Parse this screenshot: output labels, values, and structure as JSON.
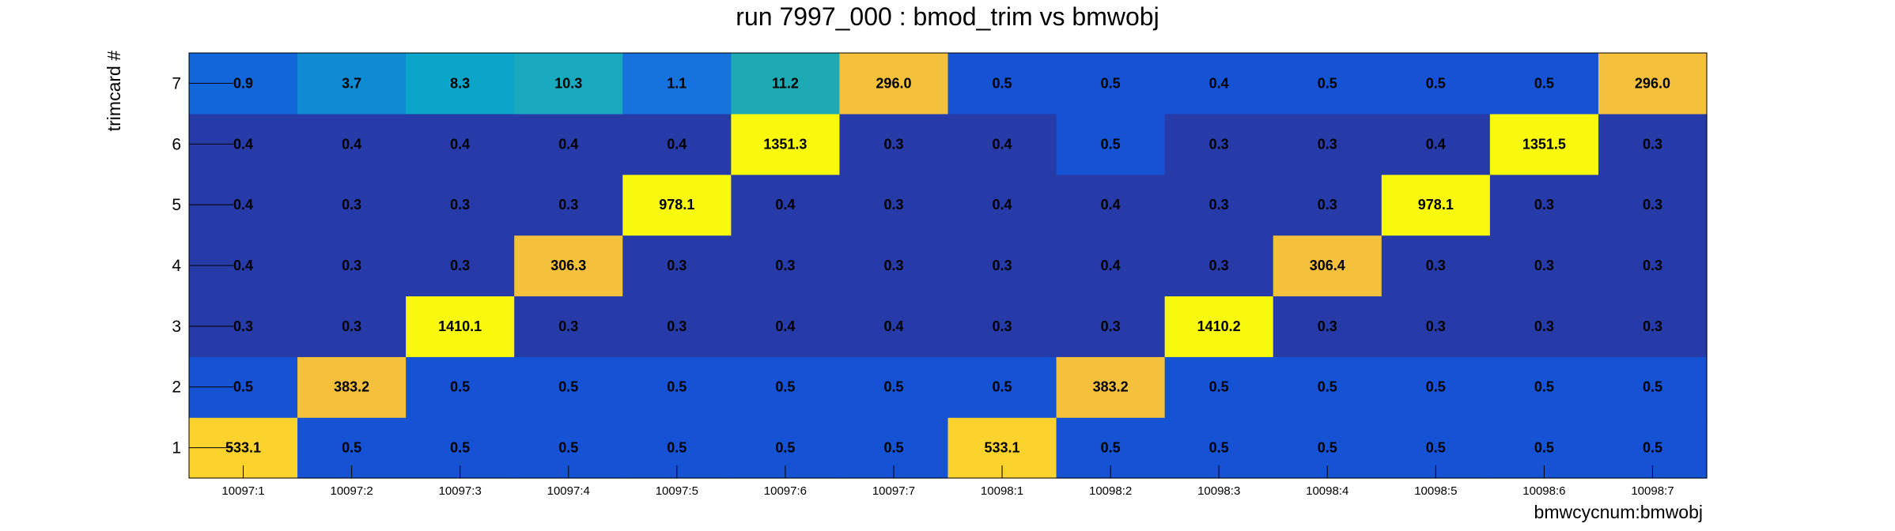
{
  "chart_data": {
    "type": "heatmap",
    "title": "run 7997_000 : bmod_trim vs bmwobj",
    "xlabel": "bmwcycnum:bmwobj",
    "ylabel": "trimcard #",
    "x_categories": [
      "10097:1",
      "10097:2",
      "10097:3",
      "10097:4",
      "10097:5",
      "10097:6",
      "10097:7",
      "10098:1",
      "10098:2",
      "10098:3",
      "10098:4",
      "10098:5",
      "10098:6",
      "10098:7"
    ],
    "y_categories": [
      "1",
      "2",
      "3",
      "4",
      "5",
      "6",
      "7"
    ],
    "zlim": [
      0,
      1410.2
    ],
    "values": [
      [
        "533.1",
        "0.5",
        "0.5",
        "0.5",
        "0.5",
        "0.5",
        "0.5",
        "533.1",
        "0.5",
        "0.5",
        "0.5",
        "0.5",
        "0.5",
        "0.5"
      ],
      [
        "0.5",
        "383.2",
        "0.5",
        "0.5",
        "0.5",
        "0.5",
        "0.5",
        "0.5",
        "383.2",
        "0.5",
        "0.5",
        "0.5",
        "0.5",
        "0.5"
      ],
      [
        "0.3",
        "0.3",
        "1410.1",
        "0.3",
        "0.3",
        "0.4",
        "0.4",
        "0.3",
        "0.3",
        "1410.2",
        "0.3",
        "0.3",
        "0.3",
        "0.3"
      ],
      [
        "0.4",
        "0.3",
        "0.3",
        "306.3",
        "0.3",
        "0.3",
        "0.3",
        "0.3",
        "0.4",
        "0.3",
        "306.4",
        "0.3",
        "0.3",
        "0.3"
      ],
      [
        "0.4",
        "0.3",
        "0.3",
        "0.3",
        "978.1",
        "0.4",
        "0.3",
        "0.4",
        "0.4",
        "0.3",
        "0.3",
        "978.1",
        "0.3",
        "0.3"
      ],
      [
        "0.4",
        "0.4",
        "0.4",
        "0.4",
        "0.4",
        "1351.3",
        "0.3",
        "0.4",
        "0.5",
        "0.3",
        "0.3",
        "0.4",
        "1351.5",
        "0.3"
      ],
      [
        "0.9",
        "3.7",
        "8.3",
        "10.3",
        "1.1",
        "11.2",
        "296.0",
        "0.5",
        "0.5",
        "0.4",
        "0.5",
        "0.5",
        "0.5",
        "296.0"
      ]
    ],
    "colors": {
      "row_colors": [
        "#1652d4",
        "#1652d4",
        "#263ba8",
        "#263ba8",
        "#263ba8",
        "#263ba8",
        "#1652d4"
      ],
      "cell_overrides": {
        "0.0": "#fcd22c",
        "0.7": "#fcd22c",
        "1.1": "#f5c13c",
        "1.8": "#f5c13c",
        "2.2": "#f9f90e",
        "2.9": "#f9f90e",
        "3.3": "#f5c13c",
        "3.10": "#f5c13c",
        "4.4": "#f9f90e",
        "4.11": "#f9f90e",
        "5.5": "#f9f90e",
        "5.12": "#f9f90e",
        "5.8": "#1652d4",
        "6.0": "#1266da",
        "6.1": "#0f8bd4",
        "6.2": "#0aa5c8",
        "6.3": "#1aaac0",
        "6.4": "#1672dc",
        "6.5": "#1eaab4",
        "6.6": "#f5c13c",
        "6.13": "#f5c13c"
      }
    }
  }
}
